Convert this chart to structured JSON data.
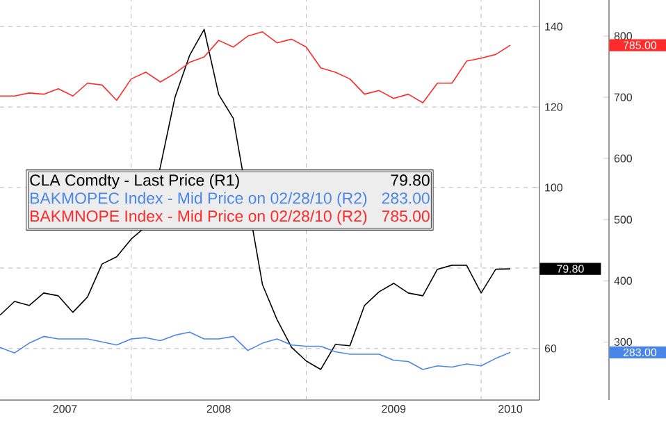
{
  "chart_data": {
    "type": "line",
    "xlim": [
      "2007-04",
      "2010-05"
    ],
    "xticks": [
      {
        "value": "2007-08-15",
        "label": "2007"
      },
      {
        "value": "2008-01",
        "label": null
      },
      {
        "value": "2008-07",
        "label": "2008"
      },
      {
        "value": "2009-01",
        "label": null
      },
      {
        "value": "2009-07",
        "label": "2009"
      },
      {
        "value": "2010-01",
        "label": null
      },
      {
        "value": "2010-03",
        "label": "2010"
      }
    ],
    "ylim": [
      47.2,
      146.6
    ],
    "yticks": [
      60,
      {
        "value": 80,
        "label": null
      },
      100,
      120,
      140
    ],
    "y2lim": [
      205,
      859
    ],
    "y2ticks": [
      300,
      400,
      500,
      600,
      700,
      800
    ],
    "grid": true,
    "legend": "left",
    "annotations": [
      "79.80",
      "283.00",
      "785.00"
    ],
    "series": [
      {
        "name": "CLA Comdty - Last Price (R1)",
        "color": "#000000",
        "axis": "y",
        "x": [
          "2007-04",
          "2007-05",
          "2007-06",
          "2007-07",
          "2007-08",
          "2007-09",
          "2007-10",
          "2007-11",
          "2007-12",
          "2008-01",
          "2008-02",
          "2008-03",
          "2008-04",
          "2008-05",
          "2008-06",
          "2008-07",
          "2008-08",
          "2008-09",
          "2008-10",
          "2008-11",
          "2008-12",
          "2009-01",
          "2009-02",
          "2009-03",
          "2009-04",
          "2009-05",
          "2009-06",
          "2009-07",
          "2009-08",
          "2009-09",
          "2009-10",
          "2009-11",
          "2009-12",
          "2010-01",
          "2010-02",
          "2010-03"
        ],
        "values": [
          68.3,
          71.7,
          70.7,
          73.8,
          73.1,
          69.0,
          72.8,
          81.0,
          82.8,
          87.2,
          90.3,
          105.2,
          122.4,
          132.8,
          139.3,
          123.1,
          117.2,
          null,
          75.9,
          67.2,
          60.3,
          56.9,
          54.8,
          61.0,
          60.7,
          70.7,
          74.1,
          76.2,
          73.8,
          73.1,
          79.7,
          80.7,
          80.7,
          73.8,
          79.7,
          79.8
        ]
      },
      {
        "name": "BAKMOPEC Index - Mid Price on 02/28/10 (R2)",
        "color": "#4a86e8",
        "axis": "y2",
        "x": [
          "2007-04",
          "2007-05",
          "2007-06",
          "2007-07",
          "2007-08",
          "2007-10",
          "2007-11",
          "2007-12",
          "2008-01",
          "2008-02",
          "2008-03",
          "2008-04",
          "2008-05",
          "2008-06",
          "2008-07",
          "2008-08",
          "2008-09",
          "2008-10",
          "2008-11",
          "2008-12",
          "2009-01",
          "2009-02",
          "2009-03",
          "2009-04",
          "2009-06",
          "2009-07",
          "2009-08",
          "2009-09",
          "2009-10",
          "2009-11",
          "2009-12",
          "2010-01",
          "2010-02",
          "2010-03"
        ],
        "values": [
          291,
          282,
          298,
          309,
          305,
          305,
          300,
          295,
          305,
          307,
          302,
          311,
          316,
          305,
          305,
          309,
          286,
          298,
          305,
          295,
          293,
          293,
          284,
          280,
          280,
          270,
          268,
          255,
          261,
          259,
          264,
          261,
          273,
          283
        ]
      },
      {
        "name": "BAKMNOPE Index - Mid Price on 02/28/10 (R2)",
        "color": "#ff2a2a",
        "axis": "y2",
        "x": [
          "2007-04",
          "2007-05",
          "2007-06",
          "2007-07",
          "2007-08",
          "2007-09",
          "2007-10",
          "2007-11",
          "2007-12",
          "2008-01",
          "2008-02",
          "2008-03",
          "2008-04",
          "2008-05",
          "2008-06",
          "2008-07",
          "2008-08",
          "2008-09",
          "2008-10",
          "2008-11",
          "2008-12",
          "2009-01",
          "2009-02",
          "2009-03",
          "2009-04",
          "2009-05",
          "2009-06",
          "2009-07",
          "2009-08",
          "2009-09",
          "2009-10",
          "2009-11",
          "2009-12",
          "2010-01",
          "2010-02",
          "2010-03"
        ],
        "values": [
          702,
          702,
          707,
          705,
          714,
          702,
          723,
          720,
          695,
          730,
          741,
          725,
          739,
          757,
          766,
          793,
          782,
          800,
          807,
          789,
          795,
          782,
          748,
          741,
          730,
          705,
          711,
          698,
          705,
          691,
          723,
          723,
          759,
          764,
          770,
          785
        ]
      }
    ]
  }
}
